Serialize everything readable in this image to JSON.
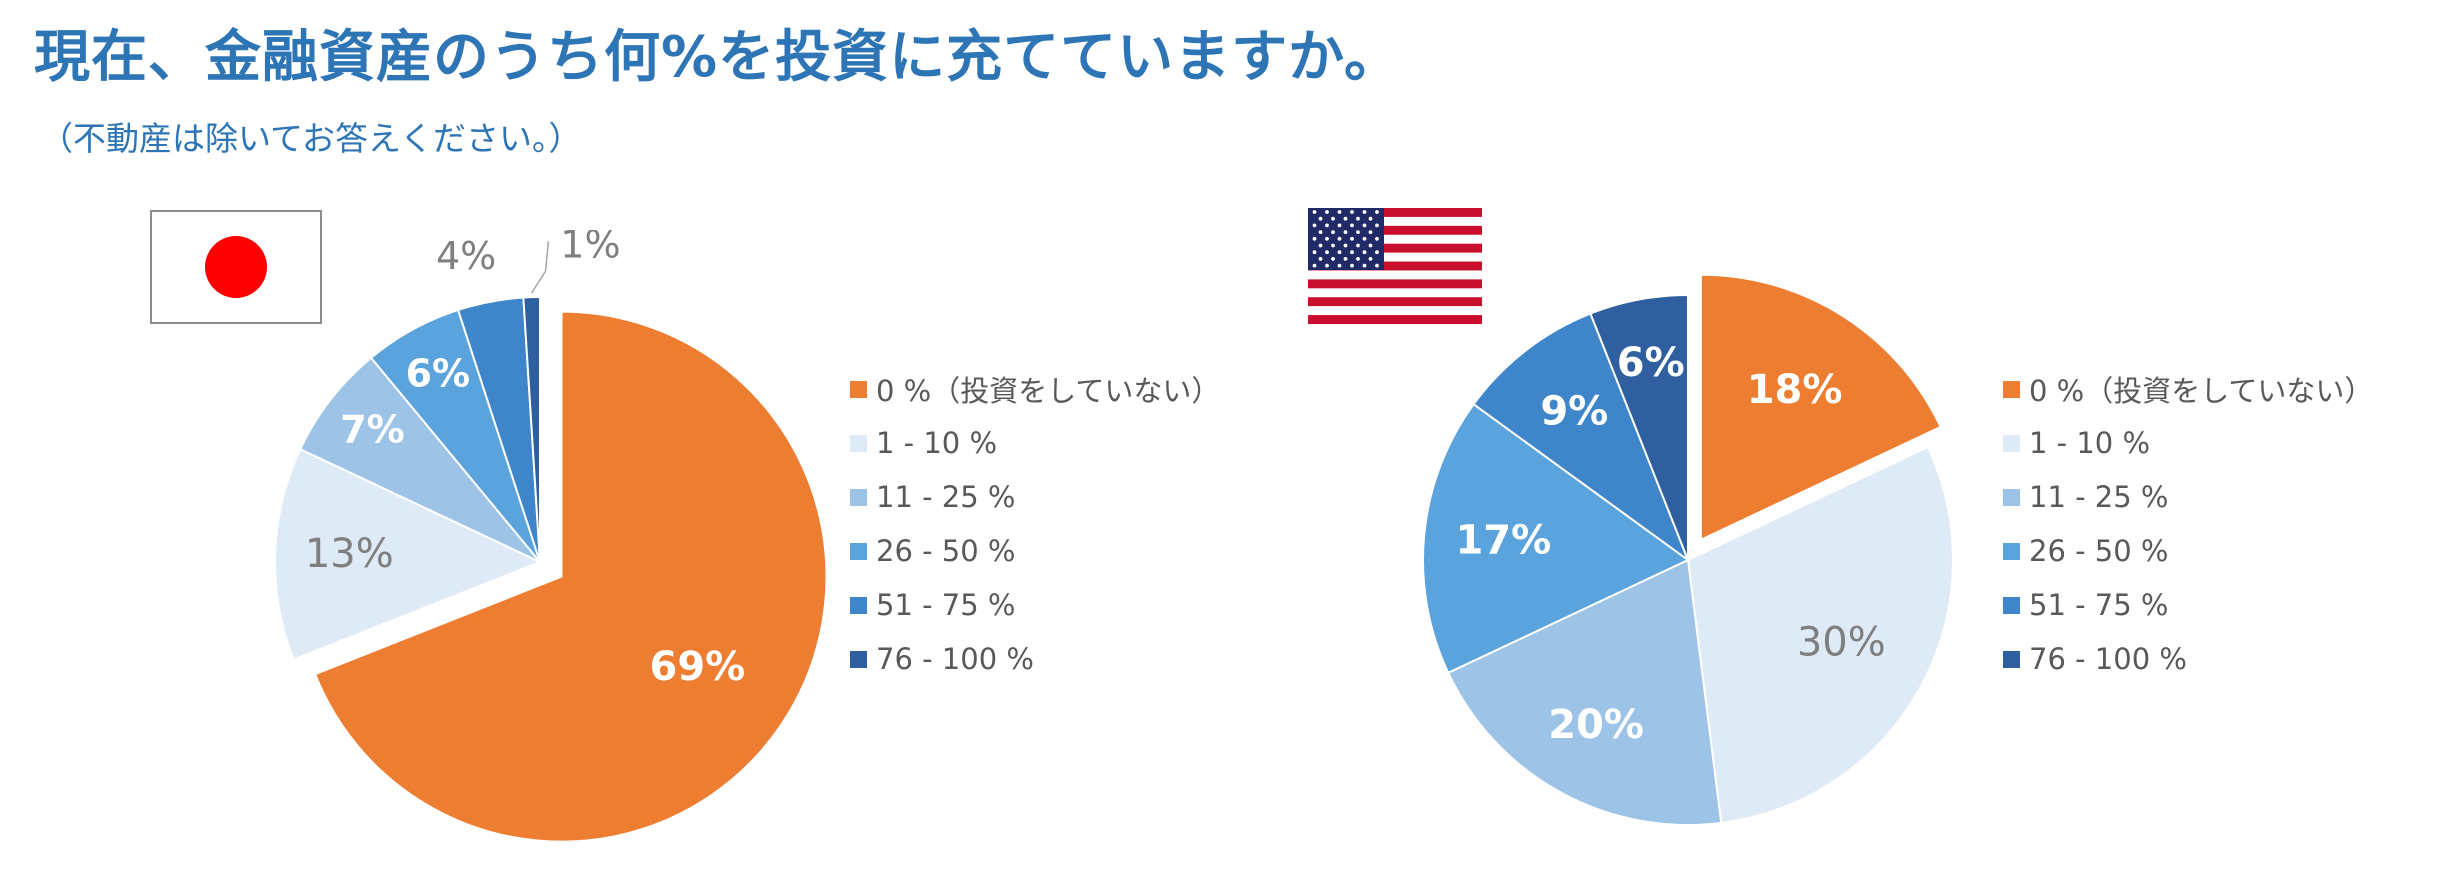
{
  "title": "現在、金融資産のうち何%を投資に充てていますか。",
  "subtitle": "（不動産は除いてお答えください。）",
  "legend": [
    {
      "label": "0 %（投資をしていない）",
      "color": "#ed7d31"
    },
    {
      "label": "1 - 10 %",
      "color": "#deebf7"
    },
    {
      "label": "11 - 25 %",
      "color": "#9dc3e6"
    },
    {
      "label": "26 - 50 %",
      "color": "#5ba3dc"
    },
    {
      "label": "51 - 75 %",
      "color": "#3e85c9"
    },
    {
      "label": "76 - 100 %",
      "color": "#2f5f9e"
    }
  ],
  "chart_data": [
    {
      "type": "pie",
      "country_flag": "japan-flag",
      "categories": [
        "0 %（投資をしていない）",
        "1 - 10 %",
        "11 - 25 %",
        "26 - 50 %",
        "51 - 75 %",
        "76 - 100 %"
      ],
      "values": [
        69,
        13,
        7,
        6,
        4,
        1
      ],
      "labels": [
        "69%",
        "13%",
        "7%",
        "6%",
        "4%",
        "1%"
      ],
      "exploded": "0 %（投資をしていない）"
    },
    {
      "type": "pie",
      "country_flag": "usa-flag",
      "categories": [
        "0 %（投資をしていない）",
        "1 - 10 %",
        "11 - 25 %",
        "26 - 50 %",
        "51 - 75 %",
        "76 - 100 %"
      ],
      "values": [
        18,
        30,
        20,
        17,
        9,
        6
      ],
      "labels": [
        "18%",
        "30%",
        "20%",
        "17%",
        "9%",
        "6%"
      ],
      "exploded": "0 %（投資をしていない）"
    }
  ]
}
